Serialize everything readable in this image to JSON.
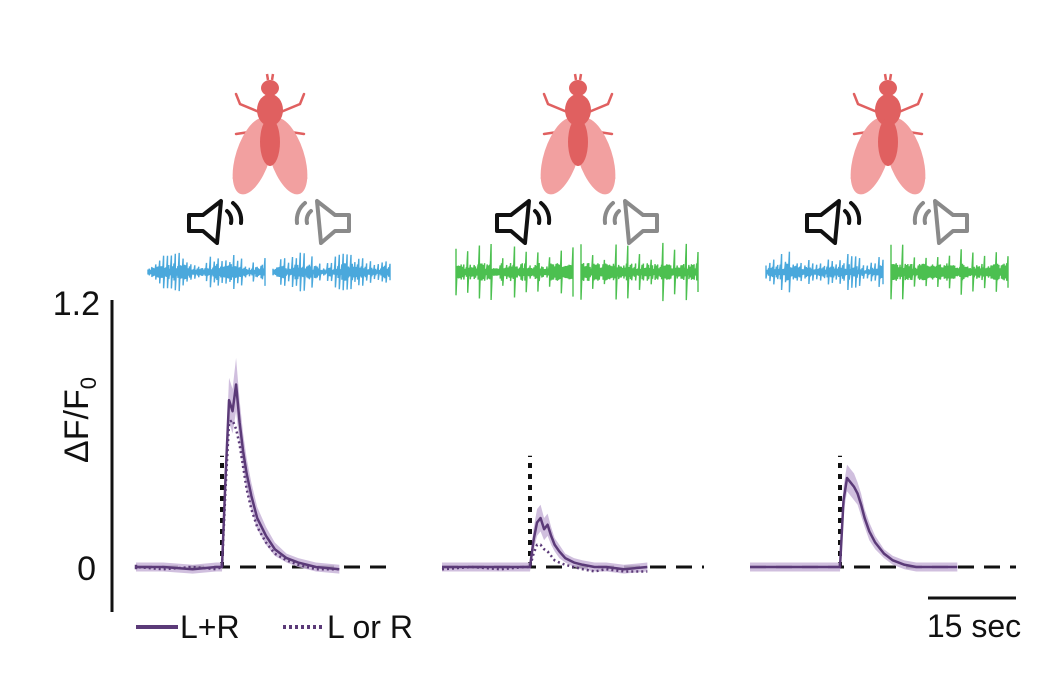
{
  "colors": {
    "trace": "#5b3a78",
    "band": "#c8b4d8",
    "fly": "#e06060",
    "fly_wing": "#f2a0a0",
    "song_pulse": "#4aa8dc",
    "song_sine": "#4cc050",
    "speaker_active": "#111111",
    "speaker_inactive": "#8a8a8a"
  },
  "chart_data": {
    "type": "line",
    "title": "",
    "ylabel": "ΔF/F",
    "ylabel_subscript": "0",
    "ylim": [
      -0.2,
      1.2
    ],
    "yticks": [
      {
        "value": 0,
        "label": "0"
      },
      {
        "value": 1.2,
        "label": "1.2"
      }
    ],
    "time_unit": "sec",
    "time_range": [
      -20,
      20
    ],
    "stimulus_onset": 0,
    "stimulus_marker_height": 0.5,
    "baseline": 0,
    "scale_bar": {
      "value": 15,
      "label": "15 sec"
    },
    "legend": [
      {
        "name": "L+R",
        "style": "solid"
      },
      {
        "name": "L or R",
        "style": "dotted"
      }
    ],
    "panels": [
      {
        "name": "pulse-pulse",
        "left_speaker": {
          "state": "active",
          "song": "pulse"
        },
        "right_speaker": {
          "state": "inactive",
          "song": "pulse"
        },
        "series": [
          {
            "name": "L+R",
            "style": "solid",
            "x": [
              -20,
              -15,
              -10,
              -5,
              -1,
              0,
              0.6,
              1.2,
              1.8,
              2.4,
              3,
              3.6,
              4.2,
              5,
              6,
              7.5,
              9,
              11,
              13,
              16,
              20
            ],
            "y": [
              0.01,
              0.0,
              0.0,
              -0.01,
              0.0,
              0.0,
              0.4,
              0.75,
              0.7,
              0.82,
              0.65,
              0.52,
              0.42,
              0.32,
              0.22,
              0.14,
              0.08,
              0.04,
              0.02,
              0.0,
              -0.01
            ],
            "band": [
              0.02,
              0.02,
              0.02,
              0.02,
              0.02,
              0.02,
              0.08,
              0.1,
              0.1,
              0.12,
              0.1,
              0.08,
              0.07,
              0.06,
              0.05,
              0.04,
              0.03,
              0.02,
              0.02,
              0.02,
              0.02
            ]
          },
          {
            "name": "L or R",
            "style": "dotted",
            "x": [
              -20,
              -15,
              -10,
              -5,
              -1,
              0,
              0.6,
              1.2,
              1.8,
              2.4,
              3,
              3.6,
              4.2,
              5,
              6,
              7.5,
              9,
              11,
              13,
              16,
              20
            ],
            "y": [
              -0.01,
              0.0,
              -0.01,
              0.0,
              -0.01,
              0.0,
              0.35,
              0.65,
              0.66,
              0.62,
              0.55,
              0.45,
              0.35,
              0.26,
              0.18,
              0.11,
              0.06,
              0.03,
              0.01,
              -0.01,
              -0.01
            ]
          }
        ]
      },
      {
        "name": "sine-sine",
        "left_speaker": {
          "state": "active",
          "song": "sine"
        },
        "right_speaker": {
          "state": "inactive",
          "song": "sine"
        },
        "series": [
          {
            "name": "L+R",
            "style": "solid",
            "x": [
              -20,
              -15,
              -10,
              -5,
              -1,
              0,
              0.6,
              1.2,
              1.8,
              2.4,
              3,
              3.6,
              4.2,
              5,
              6,
              7.5,
              9,
              11,
              13,
              16,
              20
            ],
            "y": [
              0.0,
              0.0,
              0.0,
              0.0,
              0.0,
              0.0,
              0.12,
              0.2,
              0.22,
              0.17,
              0.19,
              0.14,
              0.1,
              0.07,
              0.04,
              0.02,
              0.01,
              0.0,
              0.0,
              -0.01,
              0.0
            ],
            "band": [
              0.02,
              0.02,
              0.02,
              0.02,
              0.02,
              0.02,
              0.05,
              0.06,
              0.06,
              0.05,
              0.05,
              0.04,
              0.03,
              0.03,
              0.02,
              0.02,
              0.02,
              0.02,
              0.02,
              0.02,
              0.02
            ]
          },
          {
            "name": "L or R",
            "style": "dotted",
            "x": [
              -20,
              -15,
              -10,
              -5,
              -1,
              0,
              0.6,
              1.2,
              1.8,
              2.4,
              3,
              3.6,
              4.2,
              5,
              6,
              7.5,
              9,
              11,
              13,
              16,
              20
            ],
            "y": [
              -0.01,
              -0.01,
              0.0,
              -0.01,
              0.0,
              0.0,
              0.06,
              0.1,
              0.1,
              0.08,
              0.07,
              0.05,
              0.03,
              0.02,
              0.01,
              0.0,
              -0.01,
              -0.02,
              -0.01,
              -0.02,
              -0.02
            ]
          }
        ]
      },
      {
        "name": "pulse-sine",
        "left_speaker": {
          "state": "active",
          "song": "pulse"
        },
        "right_speaker": {
          "state": "inactive",
          "song": "sine"
        },
        "series": [
          {
            "name": "L+R",
            "style": "solid",
            "x": [
              -20,
              -15,
              -10,
              -5,
              -1,
              0,
              0.6,
              1.2,
              1.8,
              2.4,
              3,
              3.6,
              4.2,
              5,
              6,
              7.5,
              9,
              11,
              13,
              16,
              20
            ],
            "y": [
              0.0,
              0.0,
              0.0,
              0.0,
              0.0,
              0.0,
              0.3,
              0.4,
              0.38,
              0.36,
              0.33,
              0.28,
              0.22,
              0.16,
              0.11,
              0.06,
              0.03,
              0.01,
              0.0,
              0.0,
              0.0
            ],
            "band": [
              0.02,
              0.02,
              0.02,
              0.02,
              0.02,
              0.02,
              0.06,
              0.06,
              0.06,
              0.06,
              0.05,
              0.05,
              0.04,
              0.04,
              0.03,
              0.02,
              0.02,
              0.02,
              0.02,
              0.02,
              0.02
            ]
          }
        ]
      }
    ]
  }
}
